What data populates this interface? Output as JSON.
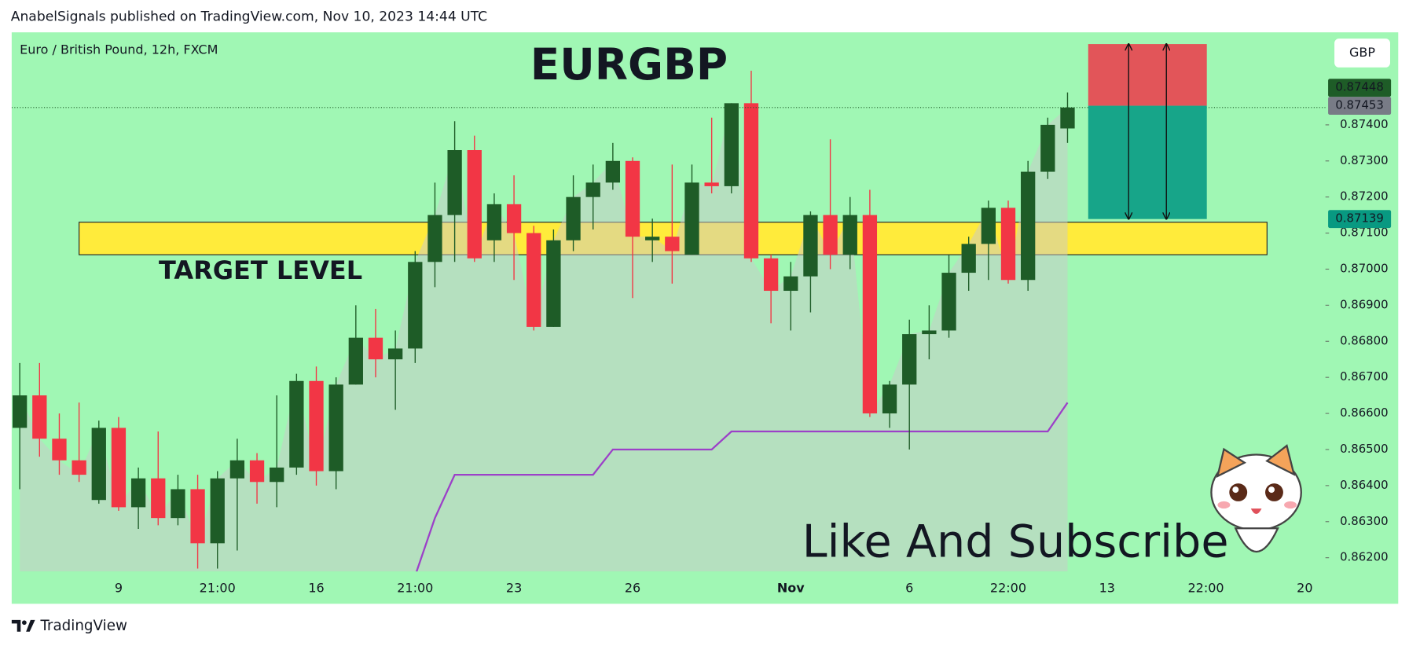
{
  "header": {
    "publisher": "AnabelSignals published on TradingView.com, Nov 10, 2023 14:44 UTC"
  },
  "chart_data": {
    "type": "candlestick",
    "symbol_label": "Euro / British Pound, 12h, FXCM",
    "title": "EURGBP",
    "currency": "GBP",
    "annotation": "Like And Subscribe",
    "categories": [
      null,
      null,
      null,
      null,
      null,
      "9",
      null,
      null,
      null,
      null,
      "21:00",
      null,
      null,
      null,
      null,
      "16",
      null,
      null,
      null,
      null,
      "21:00",
      null,
      null,
      null,
      null,
      "23",
      null,
      null,
      null,
      null,
      null,
      "26",
      null,
      null,
      null,
      null,
      null,
      null,
      null,
      "Nov",
      null,
      null,
      null,
      null,
      null,
      "6",
      null,
      null,
      null,
      null,
      "22:00",
      null,
      null,
      null,
      null,
      "13",
      null,
      null,
      null,
      null,
      "22:00",
      null,
      null,
      null,
      null,
      "20",
      null
    ],
    "open": [
      0.8656,
      0.8665,
      0.8653,
      0.8647,
      0.8636,
      0.8656,
      0.8634,
      0.8642,
      0.8631,
      0.8639,
      0.8624,
      0.8642,
      0.8647,
      0.8641,
      0.8645,
      0.8669,
      0.8644,
      0.8668,
      0.8681,
      0.8675,
      0.8678,
      0.8702,
      0.8715,
      0.8733,
      0.8708,
      0.8718,
      0.871,
      0.8684,
      0.8708,
      0.872,
      0.8724,
      0.873,
      0.8708,
      0.8709,
      0.8704,
      0.8724,
      0.8723,
      0.8746,
      0.8703,
      0.8694,
      0.8698,
      0.8715,
      0.8704,
      0.8715,
      0.866,
      0.8668,
      0.8682,
      0.8683,
      0.8699,
      0.8707,
      0.8717,
      0.8697,
      0.8727,
      0.8739,
      null,
      null,
      null,
      null,
      null,
      null,
      null,
      null,
      null,
      null,
      null,
      null,
      null
    ],
    "high": [
      0.8674,
      0.8674,
      0.866,
      0.8663,
      0.8658,
      0.8659,
      0.8645,
      0.8655,
      0.8643,
      0.8643,
      0.8644,
      0.8653,
      0.8649,
      0.8665,
      0.8671,
      0.8673,
      0.867,
      0.869,
      0.8689,
      0.8683,
      0.8705,
      0.8724,
      0.8741,
      0.8737,
      0.8721,
      0.8726,
      0.8712,
      0.8711,
      0.8726,
      0.8729,
      0.8735,
      0.8731,
      0.8714,
      0.8729,
      0.8729,
      0.8742,
      0.8746,
      0.8755,
      0.8704,
      0.8702,
      0.8716,
      0.8736,
      0.872,
      0.8722,
      0.8669,
      0.8686,
      0.869,
      0.8704,
      0.8709,
      0.8719,
      0.8719,
      0.873,
      0.8742,
      0.8749,
      null,
      null,
      null,
      null,
      null,
      null,
      null,
      null,
      null,
      null,
      null,
      null,
      null
    ],
    "low": [
      0.8639,
      0.8648,
      0.8643,
      0.8641,
      0.8635,
      0.8633,
      0.8628,
      0.8629,
      0.8629,
      0.8617,
      0.8617,
      0.8622,
      0.8635,
      0.8634,
      0.8643,
      0.864,
      0.8639,
      0.8668,
      0.867,
      0.8661,
      0.8674,
      0.8695,
      0.8702,
      0.8702,
      0.8702,
      0.8697,
      0.8683,
      0.8684,
      0.8705,
      0.8711,
      0.8722,
      0.8692,
      0.8702,
      0.8696,
      0.8704,
      0.8721,
      0.8721,
      0.8702,
      0.8685,
      0.8683,
      0.8688,
      0.87,
      0.87,
      0.8659,
      0.8656,
      0.865,
      0.8675,
      0.8681,
      0.8694,
      0.8697,
      0.8696,
      0.8694,
      0.8725,
      0.8735,
      null,
      null,
      null,
      null,
      null,
      null,
      null,
      null,
      null,
      null,
      null,
      null,
      null
    ],
    "close": [
      0.8665,
      0.8653,
      0.8647,
      0.8643,
      0.8656,
      0.8634,
      0.8642,
      0.8631,
      0.8639,
      0.8624,
      0.8642,
      0.8647,
      0.8641,
      0.8645,
      0.8669,
      0.8644,
      0.8668,
      0.8681,
      0.8675,
      0.8678,
      0.8702,
      0.8715,
      0.8733,
      0.8703,
      0.8718,
      0.871,
      0.8684,
      0.8708,
      0.872,
      0.8724,
      0.873,
      0.8709,
      0.8709,
      0.8705,
      0.8724,
      0.8723,
      0.8746,
      0.8703,
      0.8694,
      0.8698,
      0.8715,
      0.8704,
      0.8715,
      0.866,
      0.8668,
      0.8682,
      0.8683,
      0.8699,
      0.8707,
      0.8717,
      0.8697,
      0.8727,
      0.874,
      0.87448,
      null,
      null,
      null,
      null,
      null,
      null,
      null,
      null,
      null,
      null,
      null,
      null,
      null
    ],
    "up_color": "#1e5c27",
    "down_color": "#f23645",
    "indicator": {
      "color": "#9c40c8",
      "values": [
        null,
        null,
        null,
        null,
        null,
        null,
        null,
        null,
        null,
        null,
        null,
        null,
        null,
        null,
        null,
        null,
        null,
        null,
        null,
        null,
        0.8615,
        0.8631,
        0.8643,
        0.8643,
        0.8643,
        0.8643,
        0.8643,
        0.8643,
        0.8643,
        0.8643,
        0.865,
        0.865,
        0.865,
        0.865,
        0.865,
        0.865,
        0.8655,
        0.8655,
        0.8655,
        0.8655,
        0.8655,
        0.8655,
        0.8655,
        0.8655,
        0.8655,
        0.8655,
        0.8655,
        0.8655,
        0.8655,
        0.8655,
        0.8655,
        0.8655,
        0.8655,
        0.8663,
        null,
        null,
        null,
        null,
        null,
        null,
        null,
        null,
        null,
        null,
        null,
        null,
        null
      ]
    },
    "target_zone": {
      "label": "TARGET LEVEL",
      "low": 0.8704,
      "high": 0.8713,
      "color": "#ffeb3b"
    },
    "position": {
      "stop": 0.87624,
      "entry": 0.87453,
      "target": 0.87139,
      "stop_color": "#e25559",
      "target_color": "#17a589"
    },
    "price_tags": [
      0.87453,
      0.87448,
      0.87139
    ],
    "price_tag_colors": [
      "#787b86",
      "#1e5c27",
      "#089981"
    ],
    "ylim": [
      0.86162,
      0.87654
    ],
    "yticks": [
      {
        "value": 0.862,
        "label": "0.86200"
      },
      {
        "value": 0.863,
        "label": "0.86300"
      },
      {
        "value": 0.864,
        "label": "0.86400"
      },
      {
        "value": 0.865,
        "label": "0.86500"
      },
      {
        "value": 0.866,
        "label": "0.86600"
      },
      {
        "value": 0.867,
        "label": "0.86700"
      },
      {
        "value": 0.868,
        "label": "0.86800"
      },
      {
        "value": 0.869,
        "label": "0.86900"
      },
      {
        "value": 0.87,
        "label": "0.87000"
      },
      {
        "value": 0.871,
        "label": "0.87100"
      },
      {
        "value": 0.872,
        "label": "0.87200"
      },
      {
        "value": 0.873,
        "label": "0.87300"
      },
      {
        "value": 0.874,
        "label": "0.87400"
      }
    ],
    "background": "#a0f7b4"
  },
  "footer": {
    "brand": "TradingView"
  }
}
